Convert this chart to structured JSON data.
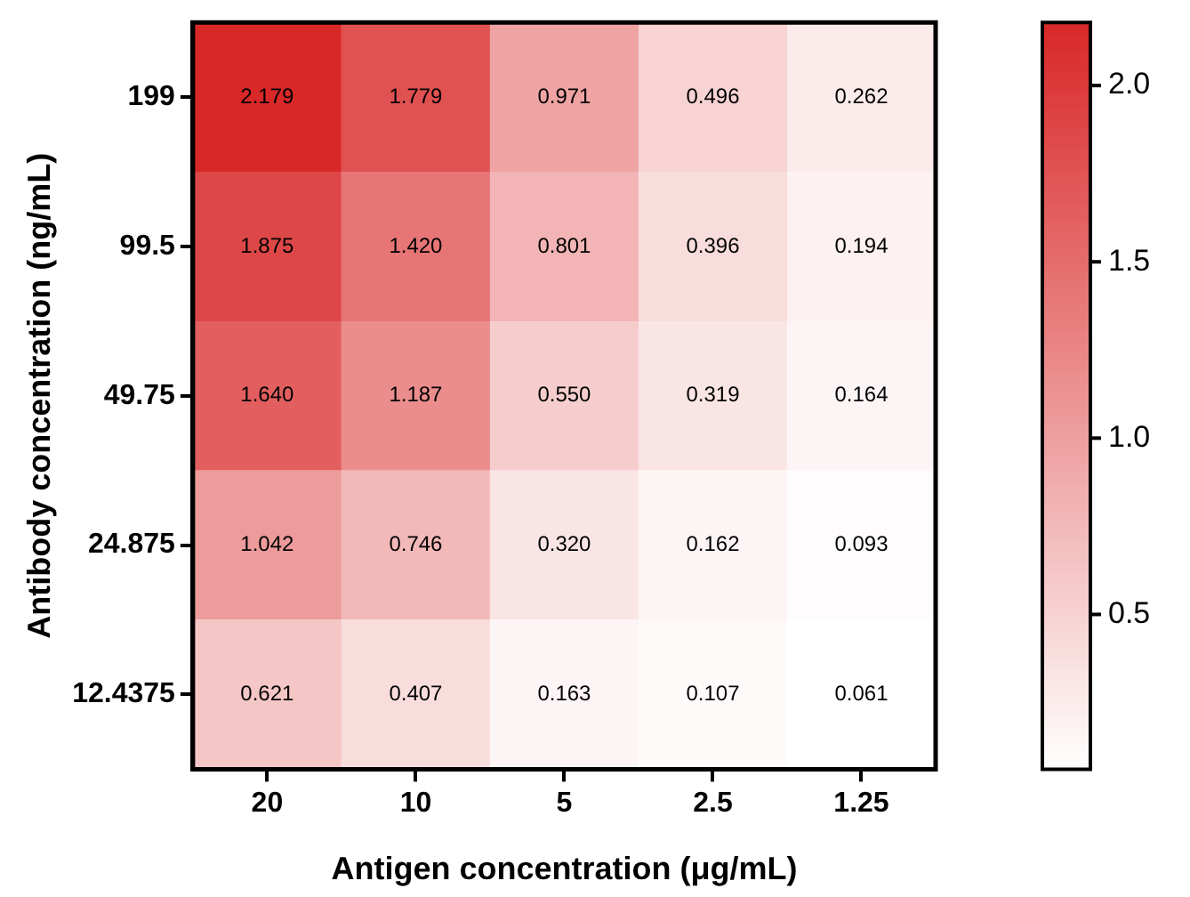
{
  "chart_data": {
    "type": "heatmap",
    "xlabel": "Antigen concentration (μg/mL)",
    "ylabel": "Antibody concentration (ng/mL)",
    "categories": [
      "20",
      "10",
      "5",
      "2.5",
      "1.25"
    ],
    "y_categories": [
      "199",
      "99.5",
      "49.75",
      "24.875",
      "12.4375"
    ],
    "cells": [
      [
        2.179,
        1.779,
        0.971,
        0.496,
        0.262
      ],
      [
        1.875,
        1.42,
        0.801,
        0.396,
        0.194
      ],
      [
        1.64,
        1.187,
        0.55,
        0.319,
        0.164
      ],
      [
        1.042,
        0.746,
        0.32,
        0.162,
        0.093
      ],
      [
        0.621,
        0.407,
        0.163,
        0.107,
        0.061
      ]
    ],
    "cell_labels": [
      [
        "2.179",
        "1.779",
        "0.971",
        "0.496",
        "0.262"
      ],
      [
        "1.875",
        "1.420",
        "0.801",
        "0.396",
        "0.194"
      ],
      [
        "1.640",
        "1.187",
        "0.550",
        "0.319",
        "0.164"
      ],
      [
        "1.042",
        "0.746",
        "0.320",
        "0.162",
        "0.093"
      ],
      [
        "0.621",
        "0.407",
        "0.163",
        "0.107",
        "0.061"
      ]
    ],
    "clim": [
      0.061,
      2.179
    ],
    "cticks": [
      {
        "value": 0.5,
        "label": "0.5"
      },
      {
        "value": 1,
        "label": "1.0"
      },
      {
        "value": 1.5,
        "label": "1.5"
      },
      {
        "value": 2,
        "label": "2.0"
      }
    ]
  }
}
